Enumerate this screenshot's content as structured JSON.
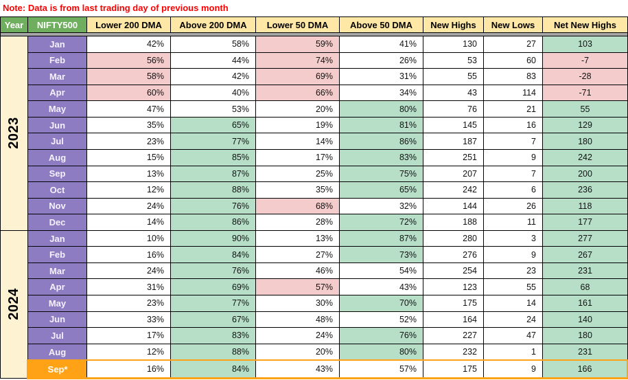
{
  "note": {
    "text": "Note: Data is from last trading day of previous month"
  },
  "colors": {
    "note_red": "#ff0000",
    "header_green": "#6fae5e",
    "header_tan": "#ffe8a6",
    "year_cream": "#fdf2d2",
    "month_purple": "#8e7cc3",
    "cell_pink": "#f4cccc",
    "cell_green": "#b7dfc8",
    "sep_orange": "#ffa216",
    "grid_black": "#000000",
    "divider_gray": "#a6a6a6"
  },
  "chart_data": {
    "type": "table",
    "title": "NIFTY500 market breadth by month",
    "columns": [
      "Year",
      "NIFTY500",
      "Lower 200 DMA",
      "Above 200 DMA",
      "Lower 50 DMA",
      "Above 50 DMA",
      "New Highs",
      "New Lows",
      "Net New Highs"
    ],
    "groups": [
      {
        "year": "2023",
        "rows": [
          {
            "month": "Jan",
            "highlight": false,
            "values": [
              "42%",
              "58%",
              "59%",
              "41%",
              "130",
              "27",
              "103"
            ],
            "bg": [
              "w",
              "w",
              "p",
              "w",
              "w",
              "w",
              "g"
            ]
          },
          {
            "month": "Feb",
            "highlight": false,
            "values": [
              "56%",
              "44%",
              "74%",
              "26%",
              "53",
              "60",
              "-7"
            ],
            "bg": [
              "p",
              "w",
              "p",
              "w",
              "w",
              "w",
              "p"
            ]
          },
          {
            "month": "Mar",
            "highlight": false,
            "values": [
              "58%",
              "42%",
              "69%",
              "31%",
              "55",
              "83",
              "-28"
            ],
            "bg": [
              "p",
              "w",
              "p",
              "w",
              "w",
              "w",
              "p"
            ]
          },
          {
            "month": "Apr",
            "highlight": false,
            "values": [
              "60%",
              "40%",
              "66%",
              "34%",
              "43",
              "114",
              "-71"
            ],
            "bg": [
              "p",
              "w",
              "p",
              "w",
              "w",
              "w",
              "p"
            ]
          },
          {
            "month": "May",
            "highlight": false,
            "values": [
              "47%",
              "53%",
              "20%",
              "80%",
              "76",
              "21",
              "55"
            ],
            "bg": [
              "w",
              "w",
              "w",
              "g",
              "w",
              "w",
              "g"
            ]
          },
          {
            "month": "Jun",
            "highlight": false,
            "values": [
              "35%",
              "65%",
              "19%",
              "81%",
              "145",
              "16",
              "129"
            ],
            "bg": [
              "w",
              "g",
              "w",
              "g",
              "w",
              "w",
              "g"
            ]
          },
          {
            "month": "Jul",
            "highlight": false,
            "values": [
              "23%",
              "77%",
              "14%",
              "86%",
              "187",
              "7",
              "180"
            ],
            "bg": [
              "w",
              "g",
              "w",
              "g",
              "w",
              "w",
              "g"
            ]
          },
          {
            "month": "Aug",
            "highlight": false,
            "values": [
              "15%",
              "85%",
              "17%",
              "83%",
              "251",
              "9",
              "242"
            ],
            "bg": [
              "w",
              "g",
              "w",
              "g",
              "w",
              "w",
              "g"
            ]
          },
          {
            "month": "Sep",
            "highlight": false,
            "values": [
              "13%",
              "87%",
              "25%",
              "75%",
              "207",
              "7",
              "200"
            ],
            "bg": [
              "w",
              "g",
              "w",
              "g",
              "w",
              "w",
              "g"
            ]
          },
          {
            "month": "Oct",
            "highlight": false,
            "values": [
              "12%",
              "88%",
              "35%",
              "65%",
              "242",
              "6",
              "236"
            ],
            "bg": [
              "w",
              "g",
              "w",
              "g",
              "w",
              "w",
              "g"
            ]
          },
          {
            "month": "Nov",
            "highlight": false,
            "values": [
              "24%",
              "76%",
              "68%",
              "32%",
              "144",
              "26",
              "118"
            ],
            "bg": [
              "w",
              "g",
              "p",
              "w",
              "w",
              "w",
              "g"
            ]
          },
          {
            "month": "Dec",
            "highlight": false,
            "values": [
              "14%",
              "86%",
              "28%",
              "72%",
              "188",
              "11",
              "177"
            ],
            "bg": [
              "w",
              "g",
              "w",
              "g",
              "w",
              "w",
              "g"
            ]
          }
        ]
      },
      {
        "year": "2024",
        "rows": [
          {
            "month": "Jan",
            "highlight": false,
            "values": [
              "10%",
              "90%",
              "13%",
              "87%",
              "280",
              "3",
              "277"
            ],
            "bg": [
              "w",
              "g",
              "w",
              "g",
              "w",
              "w",
              "g"
            ]
          },
          {
            "month": "Feb",
            "highlight": false,
            "values": [
              "16%",
              "84%",
              "27%",
              "73%",
              "276",
              "9",
              "267"
            ],
            "bg": [
              "w",
              "g",
              "w",
              "g",
              "w",
              "w",
              "g"
            ]
          },
          {
            "month": "Mar",
            "highlight": false,
            "values": [
              "24%",
              "76%",
              "46%",
              "54%",
              "254",
              "23",
              "231"
            ],
            "bg": [
              "w",
              "g",
              "w",
              "w",
              "w",
              "w",
              "g"
            ]
          },
          {
            "month": "Apr",
            "highlight": false,
            "values": [
              "31%",
              "69%",
              "57%",
              "43%",
              "123",
              "55",
              "68"
            ],
            "bg": [
              "w",
              "g",
              "p",
              "w",
              "w",
              "w",
              "g"
            ]
          },
          {
            "month": "May",
            "highlight": false,
            "values": [
              "23%",
              "77%",
              "30%",
              "70%",
              "175",
              "14",
              "161"
            ],
            "bg": [
              "w",
              "g",
              "w",
              "g",
              "w",
              "w",
              "g"
            ]
          },
          {
            "month": "Jun",
            "highlight": false,
            "values": [
              "33%",
              "67%",
              "48%",
              "52%",
              "164",
              "24",
              "140"
            ],
            "bg": [
              "w",
              "g",
              "w",
              "w",
              "w",
              "w",
              "g"
            ]
          },
          {
            "month": "Jul",
            "highlight": false,
            "values": [
              "17%",
              "83%",
              "24%",
              "76%",
              "227",
              "47",
              "180"
            ],
            "bg": [
              "w",
              "g",
              "w",
              "g",
              "w",
              "w",
              "g"
            ]
          },
          {
            "month": "Aug",
            "highlight": false,
            "values": [
              "12%",
              "88%",
              "20%",
              "80%",
              "232",
              "1",
              "231"
            ],
            "bg": [
              "w",
              "g",
              "w",
              "g",
              "w",
              "w",
              "g"
            ]
          },
          {
            "month": "Sep*",
            "highlight": true,
            "values": [
              "16%",
              "84%",
              "43%",
              "57%",
              "175",
              "9",
              "166"
            ],
            "bg": [
              "w",
              "g",
              "w",
              "w",
              "w",
              "w",
              "g"
            ]
          }
        ]
      }
    ]
  }
}
